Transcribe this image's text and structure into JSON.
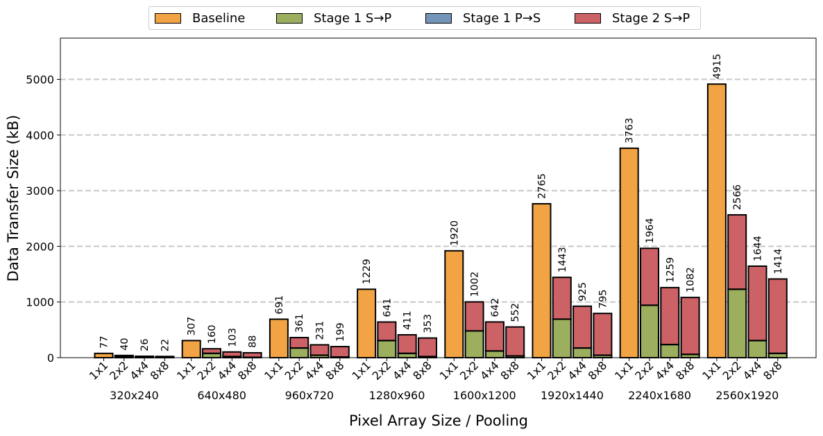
{
  "legend": {
    "items": [
      {
        "label": "Baseline",
        "color": "#f2a444"
      },
      {
        "label": "Stage 1 S→P",
        "color": "#9caf5e"
      },
      {
        "label": "Stage 1 P→S",
        "color": "#7393b8"
      },
      {
        "label": "Stage 2 S→P",
        "color": "#cc6266"
      }
    ]
  },
  "chart_data": {
    "type": "bar",
    "stacked": true,
    "xlabel": "Pixel Array Size / Pooling",
    "ylabel": "Data Transfer Size (kB)",
    "ylim": [
      0,
      5750
    ],
    "yticks": [
      0,
      1000,
      2000,
      3000,
      4000,
      5000
    ],
    "grid": "horizontal dashed",
    "legend_position": "top",
    "groups": [
      "320x240",
      "640x480",
      "960x720",
      "1280x960",
      "1600x1200",
      "1920x1440",
      "2240x1680",
      "2560x1920"
    ],
    "poolings": [
      "1x1",
      "2x2",
      "4x4",
      "8x8"
    ],
    "baseline": [
      77,
      307,
      691,
      1229,
      1920,
      2765,
      3763,
      4915
    ],
    "stage1_s2p": [
      [
        20,
        6,
        2
      ],
      [
        77,
        19,
        5
      ],
      [
        173,
        43,
        11
      ],
      [
        307,
        77,
        19
      ],
      [
        480,
        120,
        30
      ],
      [
        691,
        173,
        43
      ],
      [
        941,
        235,
        59
      ],
      [
        1229,
        307,
        77
      ]
    ],
    "stage1_p2s": [
      [
        2,
        2,
        2
      ],
      [
        2,
        2,
        2
      ],
      [
        2,
        2,
        2
      ],
      [
        2,
        2,
        2
      ],
      [
        2,
        2,
        2
      ],
      [
        2,
        2,
        2
      ],
      [
        2,
        2,
        2
      ],
      [
        2,
        2,
        2
      ]
    ],
    "stage2_s2p": [
      [
        18,
        18,
        18
      ],
      [
        81,
        82,
        81
      ],
      [
        186,
        186,
        186
      ],
      [
        332,
        332,
        332
      ],
      [
        520,
        520,
        520
      ],
      [
        750,
        750,
        750
      ],
      [
        1021,
        1022,
        1021
      ],
      [
        1335,
        1335,
        1335
      ]
    ],
    "totals": [
      [
        77,
        40,
        26,
        22
      ],
      [
        307,
        160,
        103,
        88
      ],
      [
        691,
        361,
        231,
        199
      ],
      [
        1229,
        641,
        411,
        353
      ],
      [
        1920,
        1002,
        642,
        552
      ],
      [
        2765,
        1443,
        925,
        795
      ],
      [
        3763,
        1964,
        1259,
        1082
      ],
      [
        4915,
        2566,
        1644,
        1414
      ]
    ]
  }
}
